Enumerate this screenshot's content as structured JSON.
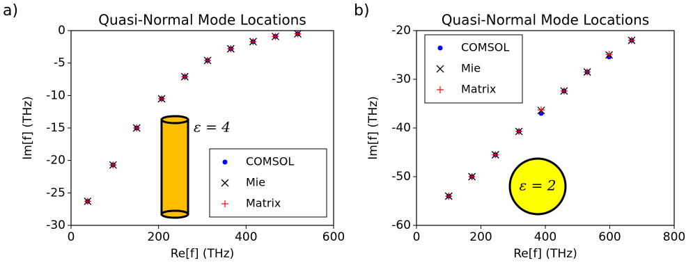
{
  "chart_data": [
    {
      "type": "scatter",
      "panel_label": "a)",
      "title": "Quasi-Normal Mode Locations",
      "xlabel": "Re[f] (THz)",
      "ylabel": "Im[f] (THz)",
      "xlim": [
        0,
        600
      ],
      "ylim": [
        -30,
        0
      ],
      "xticks": [
        0,
        200,
        400,
        600
      ],
      "yticks": [
        0,
        -5,
        -10,
        -15,
        -20,
        -25,
        -30
      ],
      "legend": "lower right",
      "annotation": "ε = 4",
      "series": [
        {
          "name": "COMSOL",
          "color": "#0000ff",
          "marker": "o",
          "x": [
            38,
            96,
            150,
            207,
            260,
            312,
            365,
            416,
            467,
            518
          ],
          "values": [
            -26.3,
            -20.7,
            -15.0,
            -10.5,
            -7.1,
            -4.6,
            -2.8,
            -1.7,
            -0.9,
            -0.5
          ]
        },
        {
          "name": "Mie",
          "color": "#000000",
          "marker": "x",
          "x": [
            38,
            96,
            150,
            207,
            260,
            312,
            365,
            416,
            467,
            518
          ],
          "values": [
            -26.3,
            -20.7,
            -15.0,
            -10.5,
            -7.1,
            -4.6,
            -2.8,
            -1.7,
            -0.9,
            -0.5
          ]
        },
        {
          "name": "Matrix",
          "color": "#ff0000",
          "marker": "+",
          "x": [
            38,
            96,
            150,
            207,
            260,
            312,
            365,
            416,
            467,
            518
          ],
          "values": [
            -26.3,
            -20.7,
            -15.0,
            -10.5,
            -7.1,
            -4.6,
            -2.8,
            -1.7,
            -0.9,
            -0.5
          ]
        }
      ]
    },
    {
      "type": "scatter",
      "panel_label": "b)",
      "title": "Quasi-Normal Mode Locations",
      "xlabel": "Re[f] (THz)",
      "ylabel": "Im[f] (THz)",
      "xlim": [
        0,
        800
      ],
      "ylim": [
        -60,
        -20
      ],
      "xticks": [
        0,
        200,
        400,
        600,
        800
      ],
      "yticks": [
        -20,
        -30,
        -40,
        -50,
        -60
      ],
      "legend": "upper left",
      "annotation": "ε = 2",
      "series": [
        {
          "name": "COMSOL",
          "color": "#0000ff",
          "marker": "o",
          "x": [
            100,
            172,
            245,
            318,
            387,
            458,
            530,
            598,
            668
          ],
          "values": [
            -54,
            -50,
            -45.5,
            -40.7,
            -37,
            -32.4,
            -28.5,
            -25.4,
            -22
          ]
        },
        {
          "name": "Mie",
          "color": "#000000",
          "marker": "x",
          "x": [
            100,
            172,
            245,
            318,
            387,
            458,
            530,
            598,
            668
          ],
          "values": [
            -54,
            -50,
            -45.5,
            -40.7,
            -36.4,
            -32.4,
            -28.5,
            -25,
            -22
          ]
        },
        {
          "name": "Matrix",
          "color": "#ff0000",
          "marker": "+",
          "x": [
            100,
            172,
            245,
            318,
            387,
            458,
            530,
            598,
            668
          ],
          "values": [
            -54,
            -50,
            -45.5,
            -40.7,
            -36.3,
            -32.4,
            -28.5,
            -24.9,
            -22
          ]
        }
      ]
    }
  ]
}
